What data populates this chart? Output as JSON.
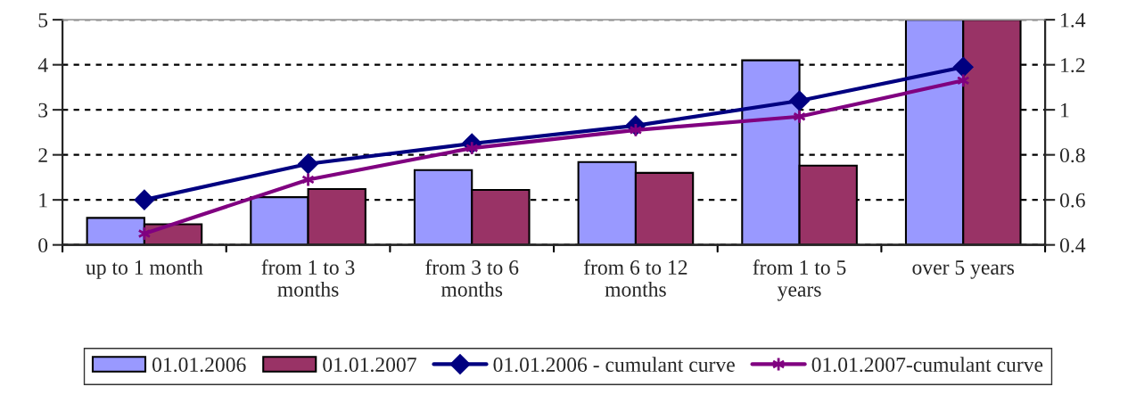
{
  "chart_data": {
    "type": "bar",
    "categories": [
      "up to 1 month",
      "from 1 to 3\nmonths",
      "from 3 to 6\nmonths",
      "from 6 to 12\nmonths",
      "from 1 to 5\nyears",
      "over 5 years"
    ],
    "series": [
      {
        "name": "01.01.2006",
        "color": "#9999ff",
        "values": [
          0.6,
          1.06,
          1.66,
          1.84,
          4.1,
          5
        ]
      },
      {
        "name": "01.01.2007",
        "color": "#993366",
        "values": [
          0.46,
          1.24,
          1.22,
          1.6,
          1.76,
          5
        ]
      },
      {
        "name": "01.01.2006 - cumulant curve",
        "type": "line",
        "axis": "y2",
        "marker": "diamond",
        "color": "#000080",
        "values": [
          0.6,
          0.76,
          0.85,
          0.93,
          1.04,
          1.19
        ]
      },
      {
        "name": "01.01.2007-cumulant curve",
        "type": "line",
        "axis": "y2",
        "marker": "cross",
        "color": "#800080",
        "values": [
          0.45,
          0.69,
          0.83,
          0.91,
          0.97,
          1.13
        ]
      }
    ],
    "ylim": [
      0,
      5
    ],
    "yticks": [
      0,
      1,
      2,
      3,
      4,
      5
    ],
    "y2lim": [
      0.4,
      1.4
    ],
    "y2ticks": [
      0.4,
      0.6,
      0.8,
      1,
      1.2,
      1.4
    ],
    "grid": "y",
    "legend": "bottom",
    "line_style": "solid"
  }
}
